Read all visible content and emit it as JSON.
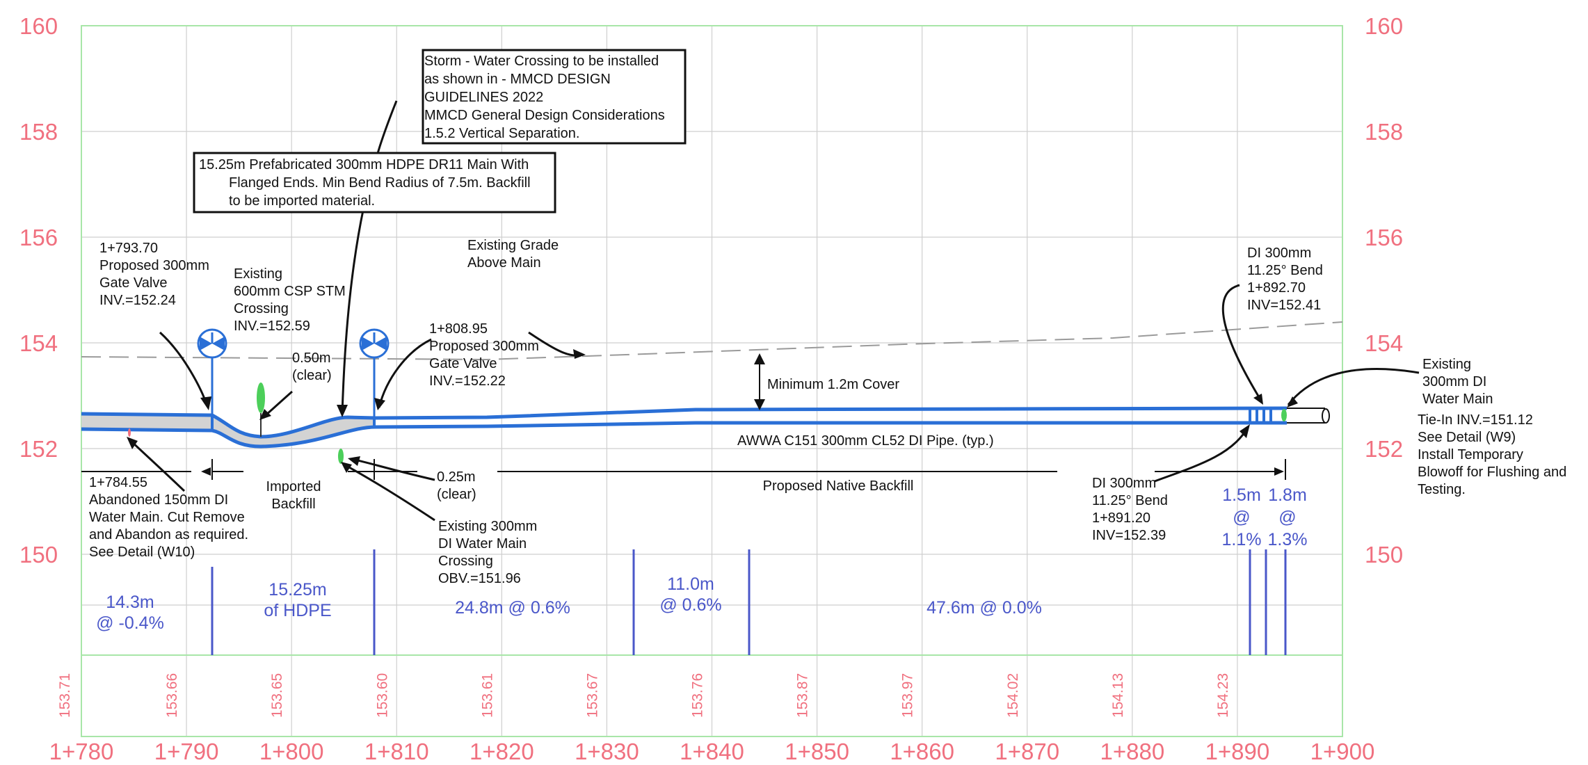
{
  "colors": {
    "grid": "#cfcfcf",
    "frame": "#a8e6a8",
    "pink_text": "#f0707f",
    "pipe": "#2a6fd6",
    "pipe_fill": "#d3d3d3",
    "segment_text": "#4a57c9",
    "grade_line": "#9a9a9a",
    "valve_blue": "#2a6fd6",
    "green_marker": "#4ccf5a"
  },
  "elevations_left": [
    "160",
    "158",
    "156",
    "154",
    "152",
    "150"
  ],
  "elevations_right": [
    "160",
    "158",
    "156",
    "154",
    "152",
    "150"
  ],
  "stations": [
    "1+780",
    "1+790",
    "1+800",
    "1+810",
    "1+820",
    "1+830",
    "1+840",
    "1+850",
    "1+860",
    "1+870",
    "1+880",
    "1+890",
    "1+900"
  ],
  "ground_elevations": [
    "153.71",
    "153.66",
    "153.65",
    "153.60",
    "153.61",
    "153.67",
    "153.76",
    "153.87",
    "153.97",
    "154.02",
    "154.13",
    "154.23"
  ],
  "notes": {
    "storm_box": [
      "Storm - Water Crossing to be installed",
      "as shown in - MMCD DESIGN",
      "GUIDELINES 2022",
      "MMCD General Design Considerations",
      "1.5.2 Vertical Separation."
    ],
    "hdpe_box": [
      "15.25m Prefabricated 300mm HDPE DR11 Main With",
      "Flanged Ends. Min Bend Radius of 7.5m. Backfill",
      "to be imported material."
    ],
    "gate_valve_1": [
      "1+793.70",
      "Proposed 300mm",
      "Gate Valve",
      "INV.=152.24"
    ],
    "existing_csp": [
      "Existing",
      "600mm CSP STM",
      "Crossing",
      "INV.=152.59"
    ],
    "existing_grade": [
      "Existing Grade",
      "Above Main"
    ],
    "gate_valve_2": [
      "1+808.95",
      "Proposed 300mm",
      "Gate Valve",
      "INV.=152.22"
    ],
    "clear_050": [
      "0.50m",
      "(clear)"
    ],
    "clear_025": [
      "0.25m",
      "(clear)"
    ],
    "min_cover": "Minimum 1.2m Cover",
    "pipe_spec": "AWWA C151 300mm CL52 DI Pipe. (typ.)",
    "abandoned": [
      "1+784.55",
      "Abandoned 150mm DI",
      "Water Main. Cut Remove",
      "and Abandon as required.",
      "See Detail (W10)"
    ],
    "imported_backfill": [
      "Imported",
      "Backfill"
    ],
    "existing_di_crossing": [
      "Existing 300mm",
      "DI Water Main",
      "Crossing",
      "OBV.=151.96"
    ],
    "native_backfill": "Proposed Native Backfill",
    "bend_1": [
      "DI 300mm",
      "11.25° Bend",
      "1+891.20",
      "INV=152.39"
    ],
    "bend_2": [
      "DI 300mm",
      "11.25° Bend",
      "1+892.70",
      "INV=152.41"
    ],
    "existing_main": [
      "Existing",
      "300mm DI",
      "Water Main"
    ],
    "tie_in": [
      "Tie-In INV.=151.12",
      "See Detail (W9)",
      "Install Temporary",
      "Blowoff for Flushing and",
      "Testing."
    ]
  },
  "segments": {
    "s1": [
      "14.3m",
      "@ -0.4%"
    ],
    "s2": [
      "15.25m",
      "of HDPE"
    ],
    "s3": "24.8m @ 0.6%",
    "s4": [
      "11.0m",
      "@ 0.6%"
    ],
    "s5": "47.6m @ 0.0%",
    "s6": [
      "1.5m",
      "@",
      "1.1%"
    ],
    "s7": [
      "1.8m",
      "@",
      "1.3%"
    ]
  }
}
